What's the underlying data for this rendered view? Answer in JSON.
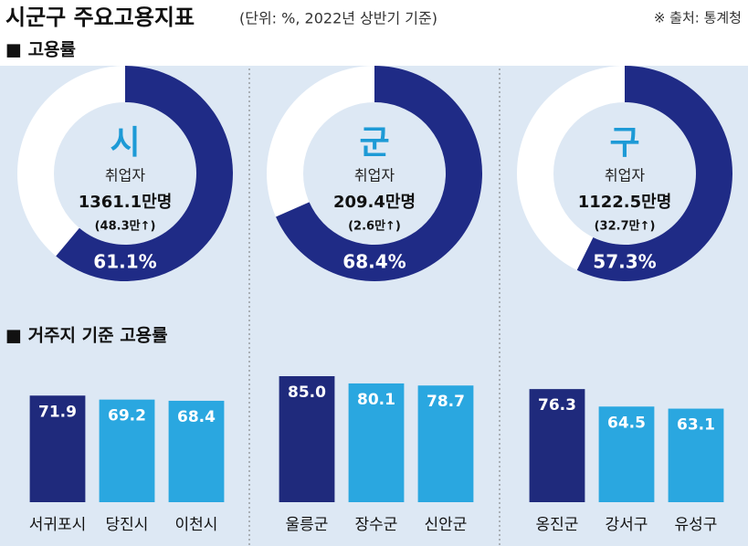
{
  "header": {
    "title": "시군구 주요고용지표",
    "subtitle": "(단위: %, 2022년 상반기 기준)",
    "source": "※ 출처: 통계청"
  },
  "sections": [
    "■ 고용률",
    "■ 거주지 기준 고용률"
  ],
  "chart_data": [
    {
      "type": "donut",
      "center_label": "시",
      "metric": "취업자",
      "count": "1361.1만명",
      "change": "(48.3만↑)",
      "values": [
        61.1
      ],
      "value_labels": [
        "61.1%"
      ],
      "color": "#1f2b86"
    },
    {
      "type": "donut",
      "center_label": "군",
      "metric": "취업자",
      "count": "209.4만명",
      "change": "(2.6만↑)",
      "values": [
        68.4
      ],
      "value_labels": [
        "68.4%"
      ],
      "color": "#1f2b86"
    },
    {
      "type": "donut",
      "center_label": "구",
      "metric": "취업자",
      "count": "1122.5만명",
      "change": "(32.7만↑)",
      "values": [
        57.3
      ],
      "value_labels": [
        "57.3%"
      ],
      "color": "#1f2b86"
    },
    {
      "type": "bar",
      "categories": [
        "서귀포시",
        "당진시",
        "이천시"
      ],
      "values": [
        71.9,
        69.2,
        68.4
      ],
      "value_labels": [
        "71.9",
        "69.2",
        "68.4"
      ],
      "colors": [
        "#1f2a7c",
        "#2aa7e0",
        "#2aa7e0"
      ],
      "ylim": [
        0,
        85
      ]
    },
    {
      "type": "bar",
      "categories": [
        "울릉군",
        "장수군",
        "신안군"
      ],
      "values": [
        85.0,
        80.1,
        78.7
      ],
      "value_labels": [
        "85.0",
        "80.1",
        "78.7"
      ],
      "colors": [
        "#1f2a7c",
        "#2aa7e0",
        "#2aa7e0"
      ],
      "ylim": [
        0,
        85
      ]
    },
    {
      "type": "bar",
      "categories": [
        "옹진군",
        "강서구",
        "유성구"
      ],
      "values": [
        76.3,
        64.5,
        63.1
      ],
      "value_labels": [
        "76.3",
        "64.5",
        "63.1"
      ],
      "colors": [
        "#1f2a7c",
        "#2aa7e0",
        "#2aa7e0"
      ],
      "ylim": [
        0,
        85
      ]
    }
  ]
}
